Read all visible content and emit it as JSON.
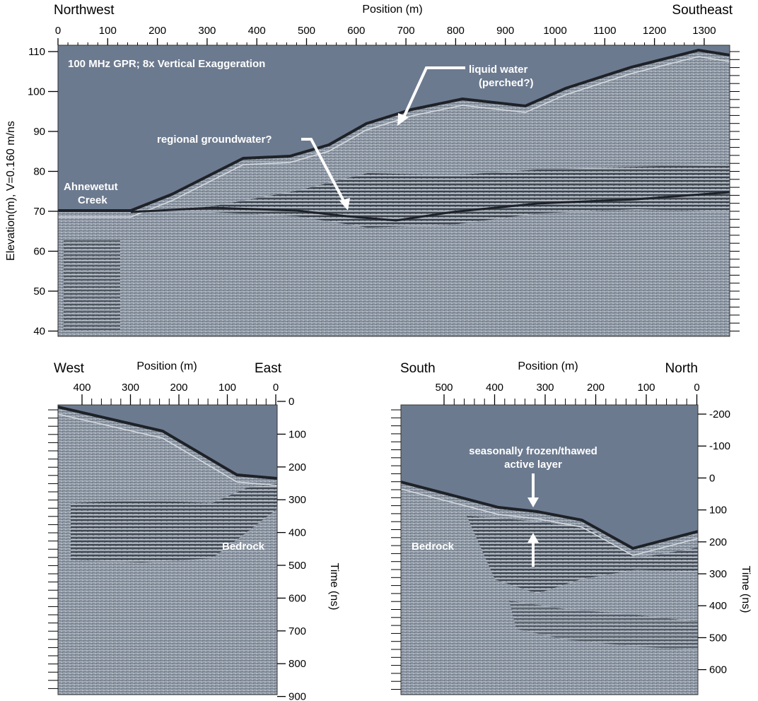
{
  "top_panel": {
    "left_direction": "Northwest",
    "right_direction": "Southeast",
    "x_axis_title": "Position (m)",
    "x_ticks": [
      "0",
      "100",
      "200",
      "300",
      "400",
      "500",
      "600",
      "700",
      "800",
      "900",
      "1000",
      "1100",
      "1200",
      "1300"
    ],
    "y_axis_title": "Elevation(m), V=0.160 m/ns",
    "y_ticks": [
      "110",
      "100",
      "90",
      "80",
      "70",
      "60",
      "50",
      "40"
    ],
    "info_text": "100 MHz GPR; 8x Vertical Exaggeration",
    "annotations": {
      "liquid_water_1": "liquid water",
      "liquid_water_2": "(perched?)",
      "groundwater": "regional groundwater?",
      "creek_1": "Ahnewetut",
      "creek_2": "Creek"
    }
  },
  "bottom_left_panel": {
    "left_direction": "West",
    "right_direction": "East",
    "x_axis_title": "Position (m)",
    "x_ticks": [
      "400",
      "300",
      "200",
      "100",
      "0"
    ],
    "y_axis_title": "Time (ns)",
    "y_ticks": [
      "0",
      "100",
      "200",
      "300",
      "400",
      "500",
      "600",
      "700",
      "800",
      "900"
    ],
    "annotation": "Bedrock"
  },
  "bottom_right_panel": {
    "left_direction": "South",
    "right_direction": "North",
    "x_axis_title": "Position (m)",
    "x_ticks": [
      "500",
      "400",
      "300",
      "200",
      "100",
      "0"
    ],
    "y_axis_title": "Time (ns)",
    "y_ticks": [
      "-200",
      "-100",
      "0",
      "100",
      "200",
      "300",
      "400",
      "500",
      "600"
    ],
    "annotation_1": "seasonally frozen/thawed",
    "annotation_2": "active layer",
    "annotation_bedrock": "Bedrock"
  },
  "colors": {
    "sky": "#6c7a8f",
    "ground": "#8e98a5",
    "reflector": "#1e2228",
    "annotation": "#ffffff"
  }
}
